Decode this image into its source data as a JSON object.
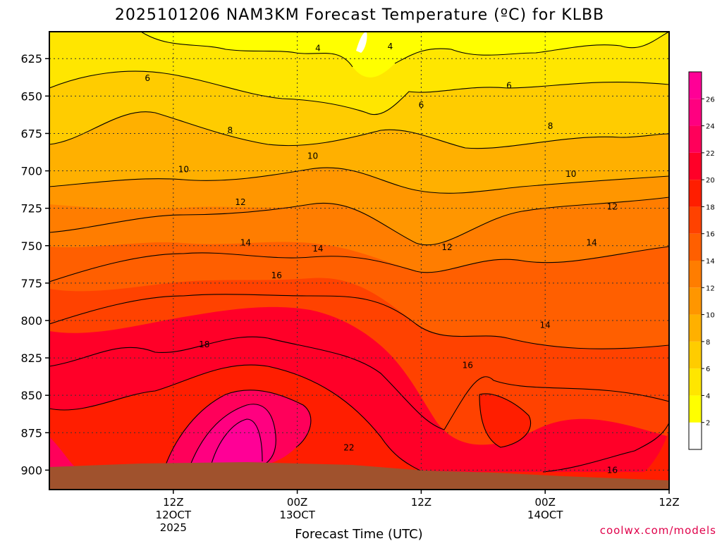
{
  "chart_data": {
    "type": "heatmap",
    "title": "2025101206 NAM3KM Forecast Temperature (ºC) for KLBB",
    "xlabel": "Forecast Time (UTC)",
    "ylabel": "",
    "credit": "coolwx.com/models",
    "y_ticks": [
      "625",
      "650",
      "675",
      "700",
      "725",
      "750",
      "775",
      "800",
      "825",
      "850",
      "875",
      "900"
    ],
    "y_tick_values": [
      625,
      650,
      675,
      700,
      725,
      750,
      775,
      800,
      825,
      850,
      875,
      900
    ],
    "ylim": [
      607,
      913
    ],
    "xlim": [
      -6,
      54
    ],
    "x_ticks": [
      {
        "hour": 6,
        "lines": [
          "12Z",
          "12OCT",
          "2025"
        ]
      },
      {
        "hour": 18,
        "lines": [
          "00Z",
          "13OCT"
        ]
      },
      {
        "hour": 30,
        "lines": [
          "12Z"
        ]
      },
      {
        "hour": 42,
        "lines": [
          "00Z",
          "14OCT"
        ]
      },
      {
        "hour": 54,
        "lines": [
          "12Z"
        ]
      }
    ],
    "grid": true,
    "colorbar": {
      "levels": [
        "2",
        "4",
        "6",
        "8",
        "10",
        "12",
        "14",
        "16",
        "18",
        "20",
        "22",
        "24",
        "26"
      ],
      "level_values": [
        2,
        4,
        6,
        8,
        10,
        12,
        14,
        16,
        18,
        20,
        22,
        24,
        26
      ],
      "colors": [
        "#ffffff",
        "#ffff00",
        "#ffe600",
        "#ffcc00",
        "#ffb000",
        "#ff9600",
        "#ff7d00",
        "#ff5f00",
        "#ff4200",
        "#ff1e00",
        "#ff0028",
        "#ff005a",
        "#ff0080",
        "#ff0096"
      ]
    },
    "contour_labels": [
      {
        "text": "4",
        "hour": 20.0,
        "p": 618
      },
      {
        "text": "4",
        "hour": 27.0,
        "p": 617
      },
      {
        "text": "6",
        "hour": 3.5,
        "p": 638
      },
      {
        "text": "6",
        "hour": 30.0,
        "p": 656
      },
      {
        "text": "6",
        "hour": 38.5,
        "p": 643
      },
      {
        "text": "8",
        "hour": 11.5,
        "p": 673
      },
      {
        "text": "8",
        "hour": 42.5,
        "p": 670
      },
      {
        "text": "10",
        "hour": 7.0,
        "p": 699
      },
      {
        "text": "10",
        "hour": 19.5,
        "p": 690
      },
      {
        "text": "10",
        "hour": 44.5,
        "p": 702
      },
      {
        "text": "12",
        "hour": 12.5,
        "p": 721
      },
      {
        "text": "12",
        "hour": 32.5,
        "p": 751
      },
      {
        "text": "12",
        "hour": 48.5,
        "p": 724
      },
      {
        "text": "14",
        "hour": 13.0,
        "p": 748
      },
      {
        "text": "14",
        "hour": 20.0,
        "p": 752
      },
      {
        "text": "14",
        "hour": 46.5,
        "p": 748
      },
      {
        "text": "14",
        "hour": 42.0,
        "p": 803
      },
      {
        "text": "16",
        "hour": 16.0,
        "p": 770
      },
      {
        "text": "16",
        "hour": 34.5,
        "p": 830
      },
      {
        "text": "16",
        "hour": 48.5,
        "p": 900
      },
      {
        "text": "18",
        "hour": 9.0,
        "p": 816
      },
      {
        "text": "22",
        "hour": 23.0,
        "p": 885
      }
    ]
  }
}
